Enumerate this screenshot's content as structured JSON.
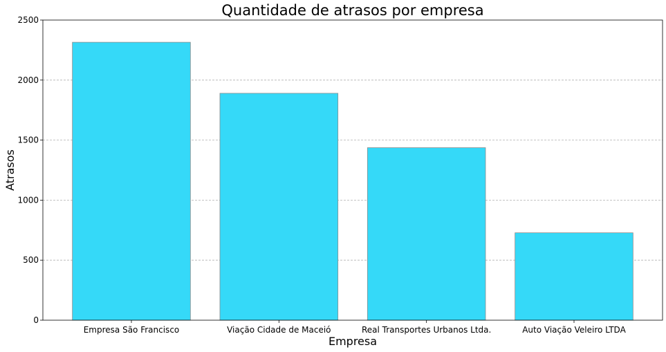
{
  "chart_data": {
    "type": "bar",
    "title": "Quantidade de atrasos por empresa",
    "xlabel": "Empresa",
    "ylabel": "Atrasos",
    "categories": [
      "Empresa São Francisco",
      "Viação Cidade de Maceió",
      "Real Transportes Urbanos Ltda.",
      "Auto Viação Veleiro LTDA"
    ],
    "values": [
      2315,
      1890,
      1437,
      728
    ],
    "ylim": [
      0,
      2500
    ],
    "yticks": [
      0,
      500,
      1000,
      1500,
      2000,
      2500
    ],
    "grid": "y-dashed",
    "bar_color": "#35d9f8",
    "edge_color": "#8c8c8c"
  }
}
